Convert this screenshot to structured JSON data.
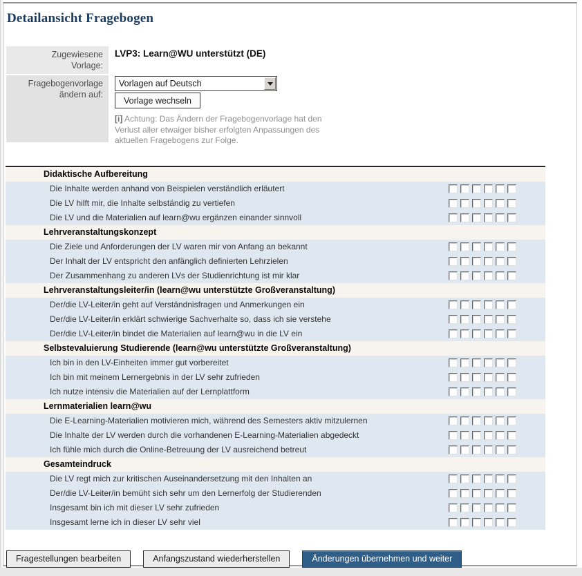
{
  "page": {
    "title": "Detailansicht Fragebogen"
  },
  "template_form": {
    "assigned_label": "Zugewiesene Vorlage:",
    "assigned_value": "LVP3: Learn@WU unterstützt (DE)",
    "change_label": "Fragebogenvorlage ändern auf:",
    "select_value": "Vorlagen auf Deutsch",
    "change_button_label": "Vorlage wechseln",
    "info_icon": "[i]",
    "info_text": "Achtung: Das Ändern der Fragebogenvorlage hat den Verlust aller etwaiger bisher erfolgten Anpassungen des aktuellen Fragebogens zur Folge."
  },
  "questionnaire": {
    "scale_points": 6,
    "groups": [
      {
        "category": "Didaktische Aufbereitung",
        "questions": [
          "Die Inhalte werden anhand von Beispielen verständlich erläutert",
          "Die LV hilft mir, die Inhalte selbständig zu vertiefen",
          "Die LV und die Materialien auf learn@wu ergänzen einander sinnvoll"
        ]
      },
      {
        "category": "Lehrveranstaltungskonzept",
        "questions": [
          "Die Ziele und Anforderungen der LV waren mir von Anfang an bekannt",
          "Der Inhalt der LV entspricht den anfänglich definierten Lehrzielen",
          "Der Zusammenhang zu anderen LVs der Studienrichtung ist mir klar"
        ]
      },
      {
        "category": "Lehrveranstaltungsleiter/in (learn@wu unterstützte Großveranstaltung)",
        "questions": [
          "Der/die LV-Leiter/in geht auf Verständnisfragen und Anmerkungen ein",
          "Der/die LV-Leiter/in erklärt schwierige Sachverhalte so, dass ich sie verstehe",
          "Der/die LV-Leiter/in bindet die Materialien auf learn@wu in die LV ein"
        ]
      },
      {
        "category": "Selbstevaluierung Studierende (learn@wu unterstützte Großveranstaltung)",
        "questions": [
          "Ich bin in den LV-Einheiten immer gut vorbereitet",
          "Ich bin mit meinem Lernergebnis in der LV sehr zufrieden",
          "Ich nutze intensiv die Materialien auf der Lernplattform"
        ]
      },
      {
        "category": "Lernmaterialien learn@wu",
        "questions": [
          "Die E-Learning-Materialien motivieren mich, während des Semesters aktiv mitzulernen",
          "Die Inhalte der LV werden durch die vorhandenen E-Learning-Materialien abgedeckt",
          "Ich fühle mich durch die Online-Betreuung der LV ausreichend betreut"
        ]
      },
      {
        "category": "Gesamteindruck",
        "questions": [
          "Die LV regt mich zur kritischen Auseinandersetzung mit den Inhalten an",
          "Der/die LV-Leiter/in bemüht sich sehr um den Lernerfolg der Studierenden",
          "Insgesamt bin ich mit dieser LV sehr zufrieden",
          "Insgesamt lerne ich in dieser LV sehr viel"
        ]
      }
    ]
  },
  "footer": {
    "buttons": [
      {
        "name": "edit-questions-button",
        "label": "Fragestellungen bearbeiten",
        "style": "secondary"
      },
      {
        "name": "restore-initial-state-button",
        "label": "Anfangszustand wiederherstellen",
        "style": "secondary"
      },
      {
        "name": "apply-and-continue-button",
        "label": "Änderungen übernehmen und weiter",
        "style": "primary"
      }
    ]
  },
  "colors": {
    "title": "#1b3c61",
    "question_row_bg": "#dfe8f0",
    "category_row_bg": "#f7f3ef",
    "primary_button_bg": "#2f5f89"
  }
}
